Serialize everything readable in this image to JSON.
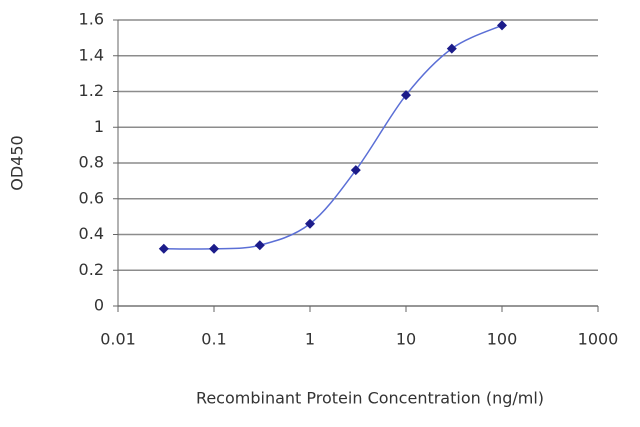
{
  "chart_data": {
    "type": "line",
    "log_x": true,
    "grid": true,
    "x_label": "Recombinant Protein Concentration (ng/ml)",
    "y_label": "OD450",
    "x": [
      0.03,
      0.1,
      0.3,
      1,
      3,
      10,
      30,
      100
    ],
    "series": [
      {
        "color": "#1c1c8a",
        "line_color": "#5b6fd6",
        "values": [
          0.32,
          0.32,
          0.34,
          0.46,
          0.76,
          1.18,
          1.44,
          1.57
        ]
      }
    ],
    "xlim": [
      0.01,
      1000
    ],
    "xticks": [
      0.01,
      0.1,
      1,
      10,
      100,
      1000
    ],
    "ylim": [
      0,
      1.6
    ],
    "yticks": [
      0,
      0.2,
      0.4,
      0.6,
      0.8,
      1,
      1.2,
      1.4,
      1.6
    ]
  }
}
